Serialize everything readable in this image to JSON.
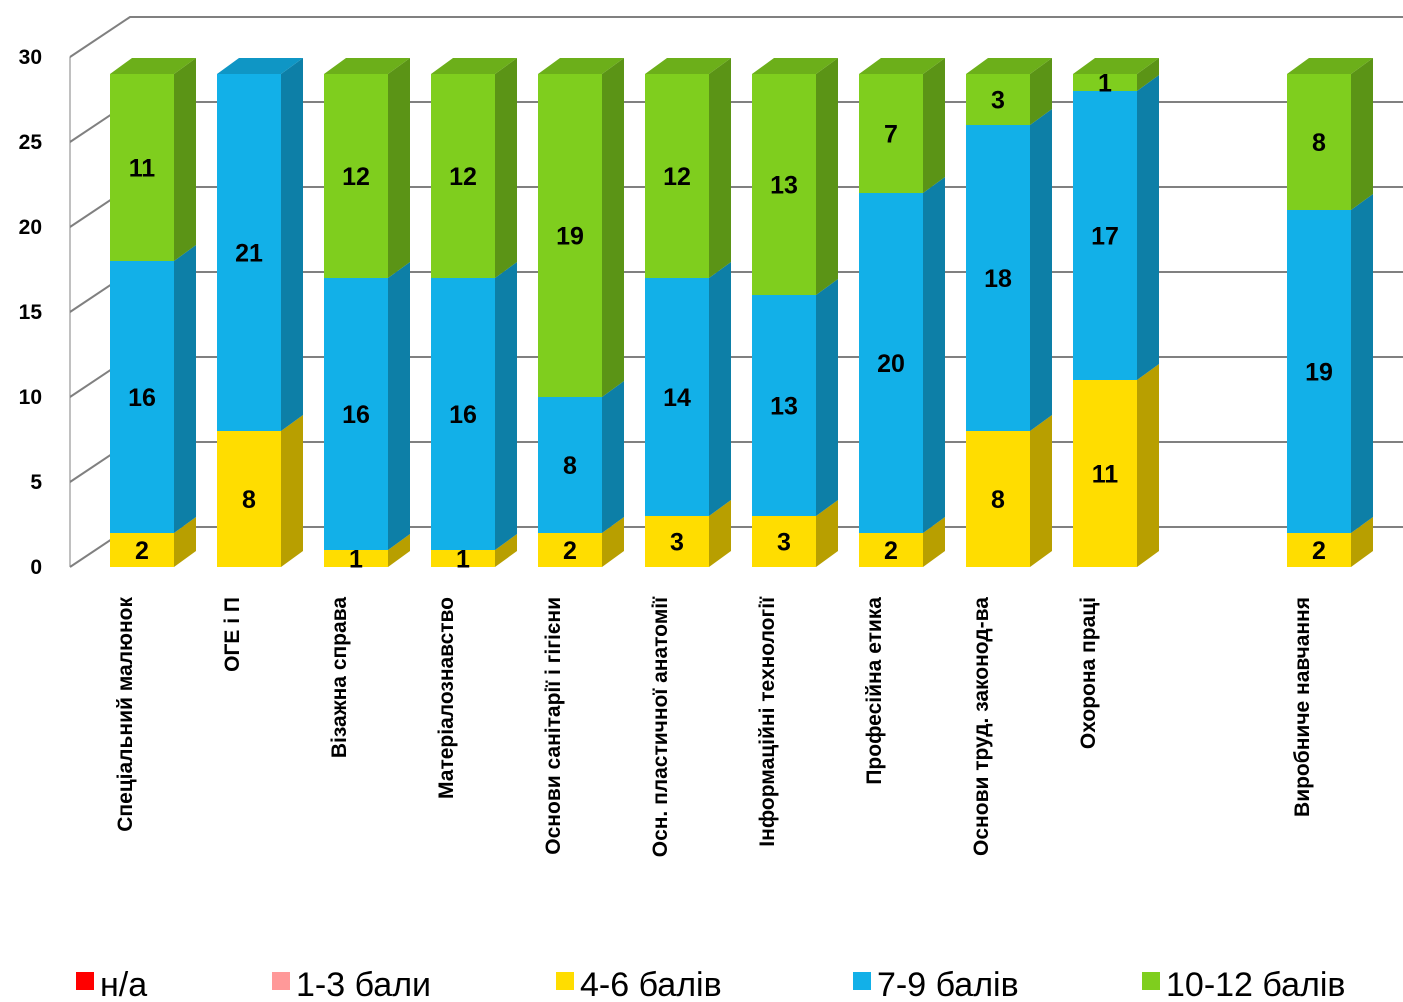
{
  "chart_data": {
    "type": "bar",
    "stacked": true,
    "three_d": true,
    "categories": [
      "Спеціальний малюнок",
      "ОГЕ і П",
      "Візажна справа",
      "Матеріалознавство",
      "Основи санітарії і гігієни",
      "Осн. пластичної анатомії",
      "Інформаційні технології",
      "Професійна етика",
      "Основи труд. законод-ва",
      "Охорона праці",
      "",
      "Виробниче навчання"
    ],
    "series": [
      {
        "name": "н/а",
        "color": "#ff0000",
        "values": [
          0,
          0,
          0,
          0,
          0,
          0,
          0,
          0,
          0,
          0,
          null,
          0
        ]
      },
      {
        "name": "1-3 бали",
        "color": "#ff9999",
        "values": [
          0,
          0,
          0,
          0,
          0,
          0,
          0,
          0,
          0,
          0,
          null,
          0
        ]
      },
      {
        "name": "4-6 балів",
        "color": "#ffdd00",
        "values": [
          2,
          8,
          1,
          1,
          2,
          3,
          3,
          2,
          8,
          11,
          null,
          2
        ]
      },
      {
        "name": "7-9 балів",
        "color": "#12b0e8",
        "values": [
          16,
          21,
          16,
          16,
          8,
          14,
          13,
          20,
          18,
          17,
          null,
          19
        ]
      },
      {
        "name": "10-12 балів",
        "color": "#7fce1e",
        "values": [
          11,
          0,
          12,
          12,
          19,
          12,
          13,
          7,
          3,
          1,
          null,
          8
        ]
      }
    ],
    "ylim": [
      0,
      30
    ],
    "yticks": [
      0,
      5,
      10,
      15,
      20,
      25,
      30
    ],
    "grid": true,
    "legend": "bottom",
    "title": "",
    "xlabel": "",
    "ylabel": ""
  }
}
